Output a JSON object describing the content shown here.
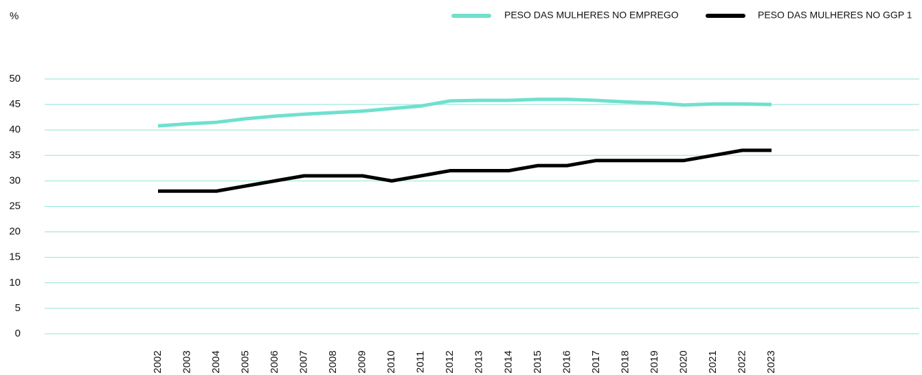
{
  "chart_data": {
    "type": "line",
    "y_label": "%",
    "categories": [
      "2002",
      "2003",
      "2004",
      "2005",
      "2006",
      "2007",
      "2008",
      "2009",
      "2010",
      "2011",
      "2012",
      "2013",
      "2014",
      "2015",
      "2016",
      "2017",
      "2018",
      "2019",
      "2020",
      "2021",
      "2022",
      "2023"
    ],
    "series": [
      {
        "name": "PESO DAS MULHERES NO EMPREGO",
        "color": "#6fe0cf",
        "values": [
          40.8,
          41.2,
          41.5,
          42.2,
          42.7,
          43.1,
          43.4,
          43.7,
          44.2,
          44.7,
          45.7,
          45.8,
          45.8,
          46.0,
          46.0,
          45.8,
          45.5,
          45.3,
          44.9,
          45.1,
          45.1,
          45.0
        ]
      },
      {
        "name": "PESO DAS MULHERES NO GGP 1",
        "color": "#000000",
        "values": [
          28,
          28,
          28,
          29,
          30,
          31,
          31,
          31,
          30,
          31,
          32,
          32,
          32,
          33,
          33,
          34,
          34,
          34,
          34,
          35,
          36,
          36
        ]
      }
    ],
    "ylim": [
      0,
      50
    ],
    "yticks": [
      0,
      5,
      10,
      15,
      20,
      25,
      30,
      35,
      40,
      45,
      50
    ],
    "grid": true,
    "legend": "top-right"
  }
}
